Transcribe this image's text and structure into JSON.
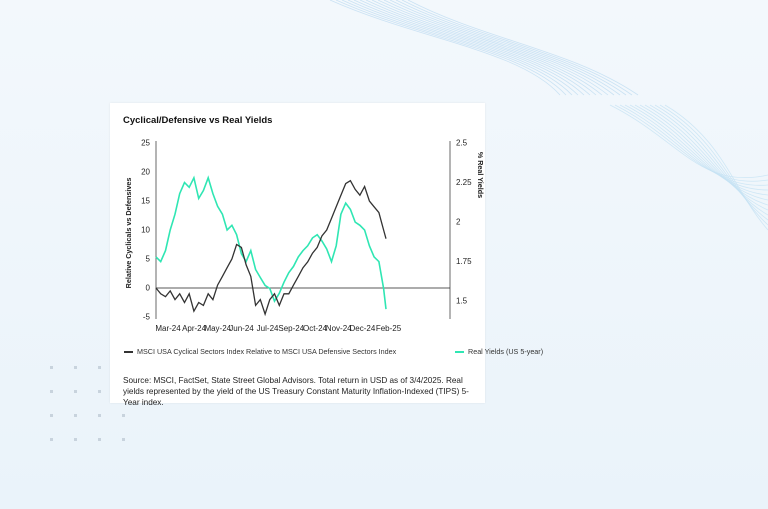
{
  "page": {
    "title": "Cyclical/Defensive vs Real Yields"
  },
  "colors": {
    "cyclical_line": "#333333",
    "yield_line": "#2fe6b3",
    "zero_line": "#222222",
    "axis": "#444444"
  },
  "legend": {
    "cyclical": "MSCI USA Cyclical Sectors Index Relative to MSCI USA Defensive Sectors Index",
    "yield": "Real Yields (US 5-year)"
  },
  "source_note": "Source: MSCI, FactSet, State Street Global Advisors. Total return in USD as of 3/4/2025. Real yields represented by the yield of the US Treasury Constant Maturity Inflation-Indexed (TIPS) 5-Year index.",
  "chart_data": {
    "type": "line",
    "title": "Cyclical/Defensive vs Real Yields",
    "xlabel": "",
    "ylabel": "Relative Cyclicals vs Defensives",
    "y2label": "% Real Yields",
    "x_range": [
      0,
      12.4
    ],
    "ylim": [
      -5,
      25
    ],
    "y2lim": [
      1.4,
      2.5
    ],
    "y_ticks": [
      25,
      20,
      15,
      10,
      5,
      0,
      -5
    ],
    "y2_ticks": [
      2.5,
      2.25,
      2,
      1.75,
      1.5
    ],
    "x_tick_labels": [
      "Mar-24",
      "Apr-24",
      "May-24",
      "Jun-24",
      "Jul-24",
      "Sep-24",
      "Oct-24",
      "Nov-24",
      "Dec-24",
      "Feb-25"
    ],
    "x_tick_positions": [
      0,
      1.1,
      2.1,
      3.1,
      4.2,
      5.2,
      6.2,
      7.2,
      8.2,
      9.3
    ],
    "series": [
      {
        "name": "MSCI USA Cyclical Sectors Index Relative to MSCI USA Defensive Sectors Index",
        "axis": "left",
        "x": [
          0,
          0.2,
          0.4,
          0.6,
          0.8,
          1.0,
          1.2,
          1.4,
          1.6,
          1.8,
          2.0,
          2.2,
          2.4,
          2.6,
          2.8,
          3.0,
          3.2,
          3.4,
          3.6,
          3.8,
          4.0,
          4.2,
          4.4,
          4.6,
          4.8,
          5.0,
          5.2,
          5.4,
          5.6,
          5.8,
          6.0,
          6.2,
          6.4,
          6.6,
          6.8,
          7.0,
          7.2,
          7.4,
          7.6,
          7.8,
          8.0,
          8.2,
          8.4,
          8.6,
          8.8,
          9.0,
          9.2,
          9.4,
          9.6,
          9.7
        ],
        "values": [
          0,
          -1,
          -1.5,
          -0.5,
          -2,
          -1,
          -2.5,
          -1,
          -4,
          -2.5,
          -3,
          -1,
          -2,
          0.5,
          2,
          3.5,
          5,
          7.5,
          7,
          4,
          2,
          -3,
          -2,
          -4.5,
          -2,
          -1,
          -3,
          -1,
          -1,
          0.5,
          2,
          3.5,
          4.5,
          6,
          7,
          9,
          10,
          12,
          14,
          16,
          18,
          18.5,
          17,
          16,
          17.5,
          15,
          14,
          13,
          10,
          8.5
        ]
      },
      {
        "name": "Real Yields (US 5-year)",
        "axis": "right",
        "x": [
          0,
          0.2,
          0.4,
          0.6,
          0.8,
          1.0,
          1.2,
          1.4,
          1.6,
          1.8,
          2.0,
          2.2,
          2.4,
          2.6,
          2.8,
          3.0,
          3.2,
          3.4,
          3.6,
          3.8,
          4.0,
          4.2,
          4.4,
          4.6,
          4.8,
          5.0,
          5.2,
          5.4,
          5.6,
          5.8,
          6.0,
          6.2,
          6.4,
          6.6,
          6.8,
          7.0,
          7.2,
          7.4,
          7.6,
          7.8,
          8.0,
          8.2,
          8.4,
          8.6,
          8.8,
          9.0,
          9.2,
          9.4,
          9.6,
          9.7
        ],
        "values": [
          1.78,
          1.75,
          1.82,
          1.95,
          2.05,
          2.18,
          2.25,
          2.22,
          2.28,
          2.15,
          2.2,
          2.28,
          2.18,
          2.1,
          2.05,
          1.95,
          1.98,
          1.92,
          1.8,
          1.75,
          1.82,
          1.7,
          1.65,
          1.6,
          1.58,
          1.5,
          1.55,
          1.62,
          1.68,
          1.72,
          1.78,
          1.82,
          1.85,
          1.9,
          1.92,
          1.88,
          1.83,
          1.75,
          1.85,
          2.05,
          2.12,
          2.08,
          2.0,
          1.98,
          1.95,
          1.85,
          1.78,
          1.75,
          1.58,
          1.45
        ]
      }
    ]
  }
}
